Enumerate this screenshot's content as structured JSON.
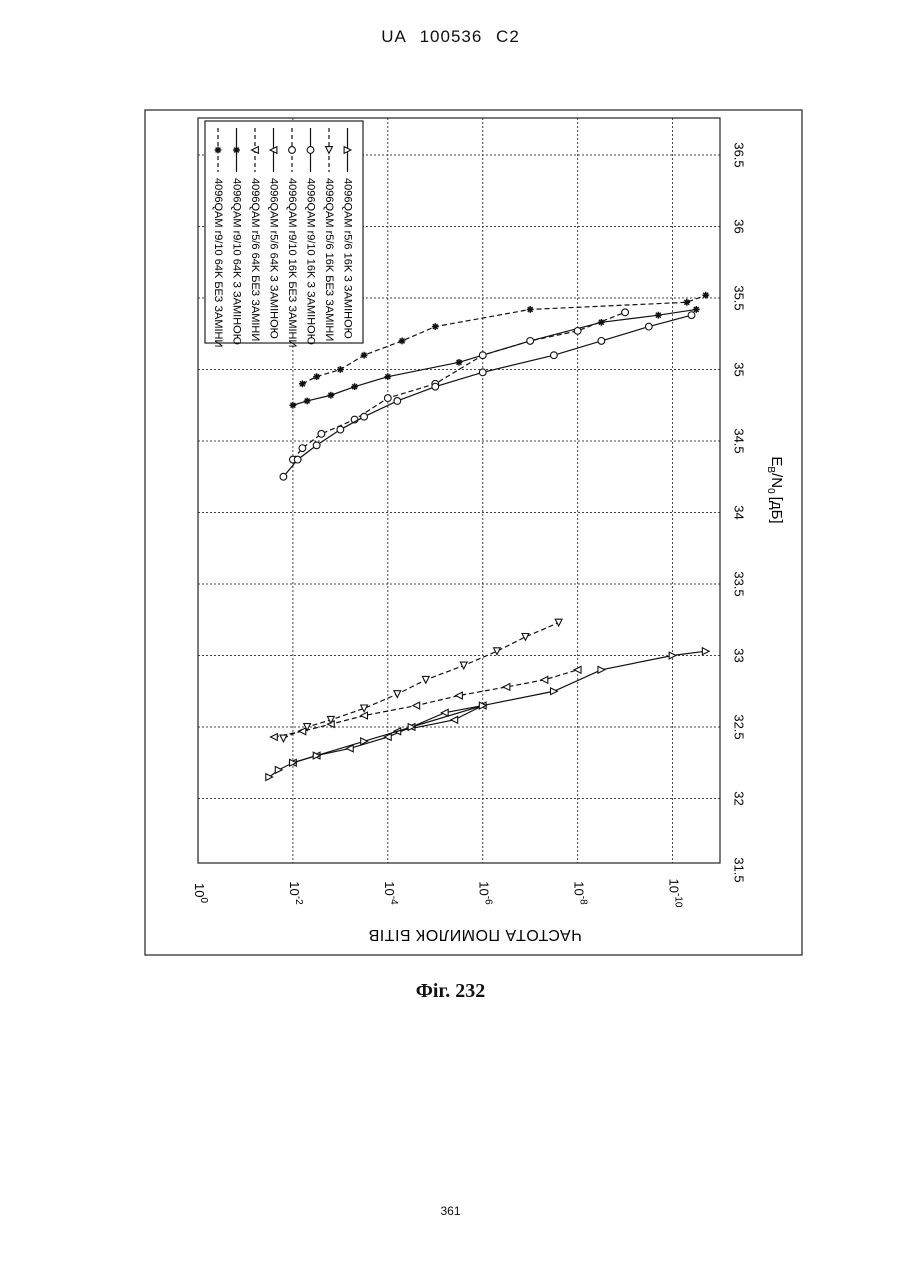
{
  "header": {
    "title": "UA   100536   C2"
  },
  "caption": "Фіг. 232",
  "footer": {
    "page_number": "361"
  },
  "chart_data": {
    "type": "line",
    "title": "",
    "xlabel": "E_B/N_0 [дБ]",
    "xlabel_parts": {
      "main": "E",
      "sub1": "B",
      "slash": "/N",
      "sub2": "0",
      "unit": "[дБ]"
    },
    "ylabel": "ЧАСТОТА ПОМИЛОК БІТІВ",
    "x_scale": "linear",
    "y_scale": "log",
    "xlim": [
      31.5,
      36.5
    ],
    "ylim": [
      -11,
      0
    ],
    "x_ticks": [
      "31.5",
      "32",
      "32.5",
      "33",
      "33.5",
      "34",
      "34.5",
      "35",
      "35.5",
      "36",
      "36.5"
    ],
    "y_ticks": [
      {
        "value": 0,
        "base": "10",
        "exp": "0"
      },
      {
        "value": -2,
        "base": "10",
        "exp": "-2"
      },
      {
        "value": -4,
        "base": "10",
        "exp": "-4"
      },
      {
        "value": -6,
        "base": "10",
        "exp": "-6"
      },
      {
        "value": -8,
        "base": "10",
        "exp": "-8"
      },
      {
        "value": -10,
        "base": "10",
        "exp": "-10"
      }
    ],
    "grid": true,
    "rotation": "chart printed rotated 90 degrees counter-clockwise",
    "legend_position": "top-left",
    "series": [
      {
        "name": "4096QAM r9/10 64K БЕЗ ЗАМІНИ",
        "marker": "star",
        "dashed": true,
        "x": [
          34.9,
          34.95,
          35.0,
          35.1,
          35.2,
          35.3,
          35.42,
          35.47,
          35.52
        ],
        "y": [
          -2.2,
          -2.5,
          -3.0,
          -3.5,
          -4.3,
          -5.0,
          -7.0,
          -10.3,
          -10.7
        ]
      },
      {
        "name": "4096QAM r9/10 64K З ЗАМІНОЮ",
        "marker": "star",
        "dashed": false,
        "x": [
          34.75,
          34.78,
          34.82,
          34.88,
          34.95,
          35.05,
          35.2,
          35.33,
          35.38,
          35.42
        ],
        "y": [
          -2.0,
          -2.3,
          -2.8,
          -3.3,
          -4.0,
          -5.5,
          -7.0,
          -8.5,
          -9.7,
          -10.5
        ]
      },
      {
        "name": "4096QAM r5/6 64K БЕЗ ЗАМІНИ",
        "marker": "triangle-left",
        "dashed": true,
        "x": [
          32.43,
          32.47,
          32.52,
          32.58,
          32.65,
          32.72,
          32.78,
          32.83,
          32.9
        ],
        "y": [
          -1.6,
          -2.2,
          -2.8,
          -3.5,
          -4.6,
          -5.5,
          -6.5,
          -7.3,
          -8.0
        ]
      },
      {
        "name": "4096QAM r5/6 64K З ЗАМІНОЮ",
        "marker": "triangle-left",
        "dashed": false,
        "x": [
          32.25,
          32.3,
          32.35,
          32.43,
          32.5,
          32.6,
          32.65,
          32.55,
          32.47
        ],
        "y": [
          -2.0,
          -2.5,
          -3.2,
          -4.0,
          -4.5,
          -5.2,
          -6.0,
          -5.4,
          -4.2
        ]
      },
      {
        "name": "4096QAM r9/10 16K БЕЗ ЗАМІНИ",
        "marker": "circle",
        "dashed": true,
        "x": [
          34.37,
          34.45,
          34.55,
          34.65,
          34.8,
          34.9,
          35.1,
          35.2,
          35.27,
          35.4
        ],
        "y": [
          -2.0,
          -2.2,
          -2.6,
          -3.3,
          -4.0,
          -5.0,
          -6.0,
          -7.0,
          -8.0,
          -9.0
        ]
      },
      {
        "name": "4096QAM r9/10 16K З ЗАМІНОЮ",
        "marker": "circle",
        "dashed": false,
        "x": [
          34.25,
          34.37,
          34.47,
          34.58,
          34.67,
          34.78,
          34.88,
          34.98,
          35.1,
          35.2,
          35.3,
          35.38
        ],
        "y": [
          -1.8,
          -2.1,
          -2.5,
          -3.0,
          -3.5,
          -4.2,
          -5.0,
          -6.0,
          -7.5,
          -8.5,
          -9.5,
          -10.4
        ]
      },
      {
        "name": "4096QAM r5/6 16K БЕЗ ЗАМІНИ",
        "marker": "triangle-down",
        "dashed": true,
        "x": [
          32.42,
          32.5,
          32.55,
          32.63,
          32.73,
          32.83,
          32.93,
          33.03,
          33.13,
          33.23
        ],
        "y": [
          -1.8,
          -2.3,
          -2.8,
          -3.5,
          -4.2,
          -4.8,
          -5.6,
          -6.3,
          -6.9,
          -7.6
        ]
      },
      {
        "name": "4096QAM r5/6 16K З ЗАМІНОЮ",
        "marker": "triangle-right",
        "dashed": false,
        "x": [
          32.15,
          32.2,
          32.25,
          32.3,
          32.4,
          32.5,
          32.65,
          32.75,
          32.9,
          33.0,
          33.03
        ],
        "y": [
          -1.5,
          -1.7,
          -2.0,
          -2.5,
          -3.5,
          -4.5,
          -6.0,
          -7.5,
          -8.5,
          -10.0,
          -10.7
        ]
      }
    ]
  }
}
